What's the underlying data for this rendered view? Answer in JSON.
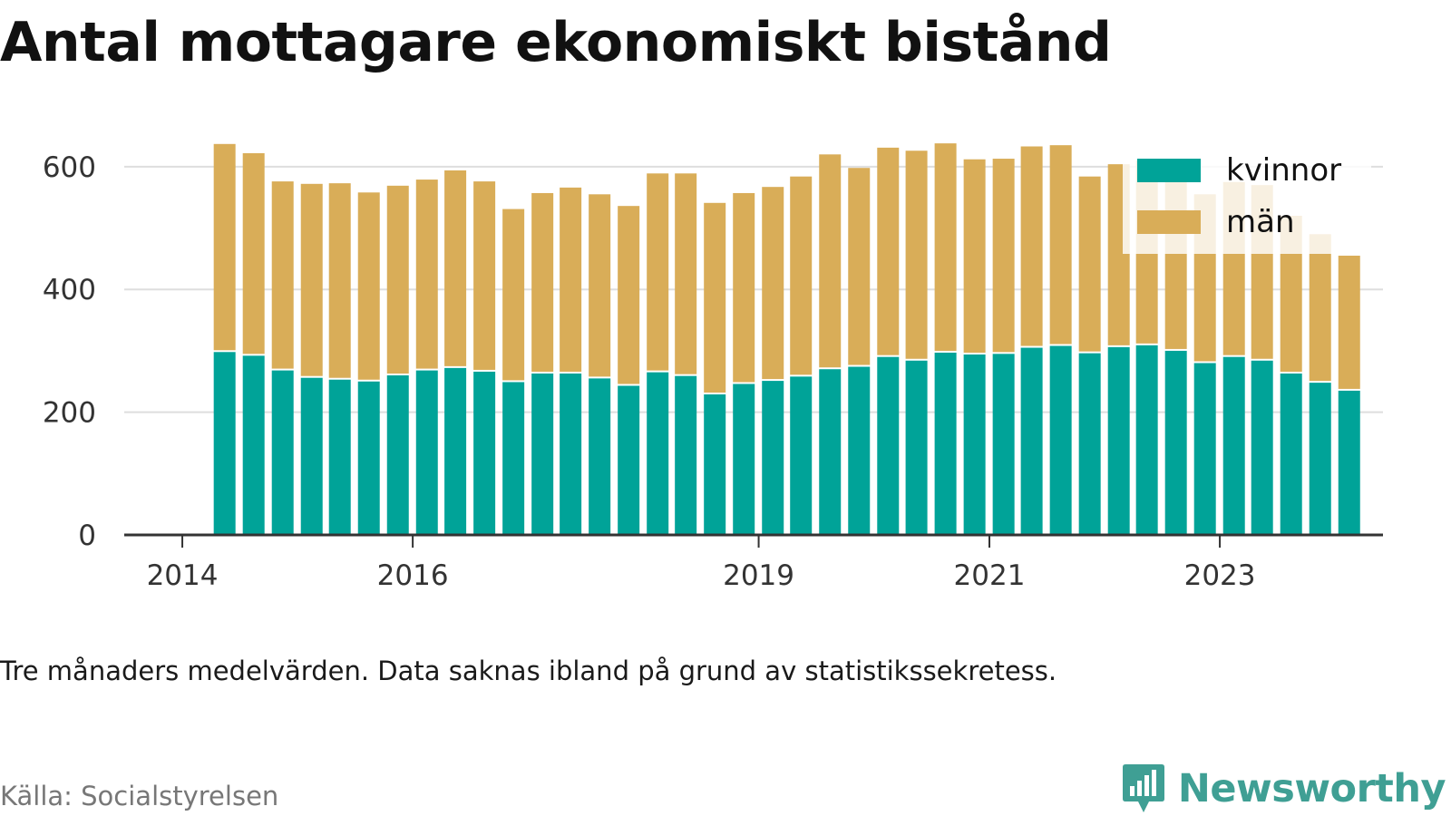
{
  "chart_data": {
    "type": "bar",
    "stacked": true,
    "title": "Antal mottagare ekonomiskt bistånd",
    "note": "Tre månaders medelvärden. Data saknas ibland på grund av statistikssekretess.",
    "source": "Källa: Socialstyrelsen",
    "x_ticks": [
      {
        "label": "2014",
        "date": "2014-01-01"
      },
      {
        "label": "2016",
        "date": "2016-01-01"
      },
      {
        "label": "2019",
        "date": "2019-01-01"
      },
      {
        "label": "2021",
        "date": "2021-01-01"
      },
      {
        "label": "2023",
        "date": "2023-01-01"
      }
    ],
    "x_range": [
      "2013-07-01",
      "2024-06-01"
    ],
    "y_ticks": [
      0,
      200,
      400,
      600
    ],
    "ylim": [
      0,
      650
    ],
    "grid": true,
    "legend_position": "top-right",
    "x": [
      "2014-05",
      "2014-08",
      "2014-11",
      "2015-02",
      "2015-05",
      "2015-08",
      "2015-11",
      "2016-02",
      "2016-05",
      "2016-08",
      "2016-11",
      "2017-02",
      "2017-05",
      "2017-08",
      "2017-11",
      "2018-02",
      "2018-05",
      "2018-08",
      "2018-11",
      "2019-02",
      "2019-05",
      "2019-08",
      "2019-11",
      "2020-02",
      "2020-05",
      "2020-08",
      "2020-11",
      "2021-02",
      "2021-05",
      "2021-08",
      "2021-11",
      "2022-02",
      "2022-05",
      "2022-08",
      "2022-11",
      "2023-02",
      "2023-05",
      "2023-08",
      "2023-11",
      "2024-02"
    ],
    "series": [
      {
        "name": "kvinnor",
        "color": "#00a398",
        "values": [
          298,
          292,
          268,
          256,
          253,
          250,
          260,
          268,
          272,
          266,
          249,
          263,
          263,
          255,
          243,
          265,
          259,
          229,
          246,
          251,
          258,
          270,
          274,
          290,
          284,
          297,
          294,
          295,
          305,
          308,
          296,
          306,
          309,
          300,
          280,
          290,
          284,
          263,
          248,
          235
        ]
      },
      {
        "name": "män",
        "color": "#d9ad58",
        "values": [
          339,
          330,
          308,
          316,
          320,
          308,
          309,
          311,
          322,
          310,
          282,
          294,
          303,
          300,
          293,
          324,
          330,
          312,
          311,
          316,
          326,
          350,
          324,
          341,
          342,
          341,
          318,
          318,
          328,
          327,
          288,
          298,
          301,
          280,
          275,
          285,
          286,
          257,
          242,
          220
        ]
      }
    ]
  },
  "brand": {
    "name": "Newsworthy",
    "icon": "bar-chart-speech-bubble-icon",
    "color": "#3f9f94"
  }
}
